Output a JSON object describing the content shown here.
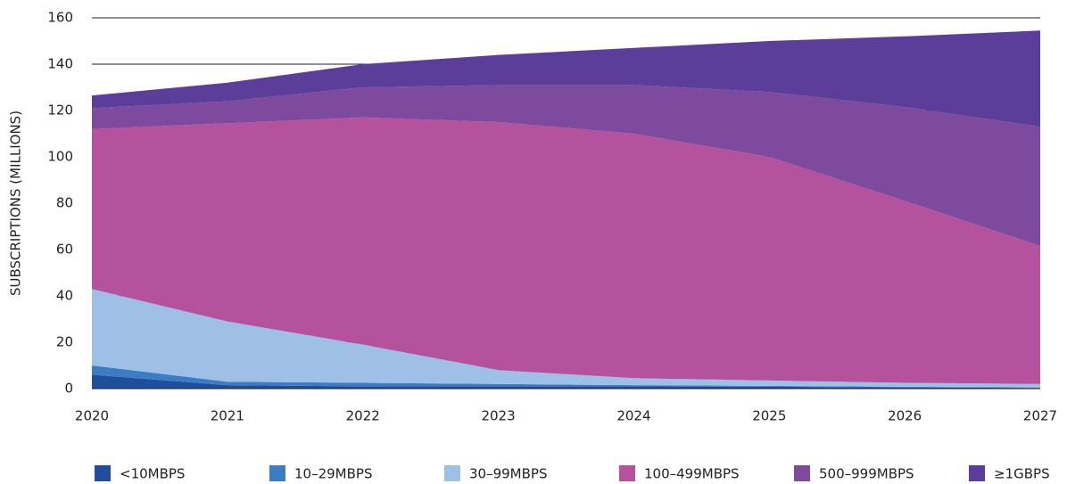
{
  "chart_data": {
    "type": "stacked_area",
    "ylabel": "SUBSCRIPTIONS (MILLIONS)",
    "categories": [
      "2020",
      "2021",
      "2022",
      "2023",
      "2024",
      "2025",
      "2026",
      "2027"
    ],
    "series": [
      {
        "name": "<10MBPS",
        "color": "#1f4e9c",
        "values": [
          6,
          1.5,
          1,
          1,
          1,
          0.8,
          0.5,
          0.3
        ]
      },
      {
        "name": "10–29MBPS",
        "color": "#3b7cc4",
        "values": [
          4,
          1.5,
          1.5,
          1,
          0.5,
          0.4,
          0.3,
          0.2
        ]
      },
      {
        "name": "30–99MBPS",
        "color": "#9ebfe6",
        "values": [
          33,
          26,
          16.5,
          6,
          3,
          2.3,
          1.7,
          1.5
        ]
      },
      {
        "name": "100–499MBPS",
        "color": "#b5529e",
        "values": [
          69,
          85.5,
          98,
          107,
          105.5,
          96.5,
          78.5,
          59.5
        ]
      },
      {
        "name": "500–999MBPS",
        "color": "#7e4a9e",
        "values": [
          9,
          9.5,
          13,
          16,
          21,
          28,
          40.5,
          51.5
        ]
      },
      {
        "name": "≥1GBPS",
        "color": "#5a3e9a",
        "values": [
          5.5,
          8,
          10,
          13,
          16,
          22,
          30.5,
          41.5
        ]
      }
    ],
    "ylim": [
      0,
      160
    ],
    "yticks": [
      0,
      20,
      40,
      60,
      80,
      100,
      120,
      140,
      160
    ],
    "grid": true,
    "legend": "bottom"
  }
}
